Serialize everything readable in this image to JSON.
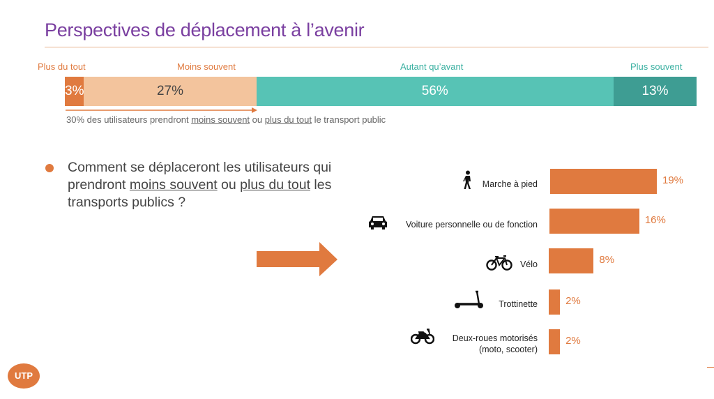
{
  "title": "Perspectives de déplacement à l’avenir",
  "stacked_bar": {
    "segments": [
      {
        "label": "Plus du tout",
        "value": 3,
        "value_text": "3%",
        "color": "#e07a3f",
        "label_color": "#e07a3f",
        "text_color": "#ffffff"
      },
      {
        "label": "Moins souvent",
        "value": 27,
        "value_text": "27%",
        "color": "#f3c49d",
        "label_color": "#e07a3f",
        "text_color": "#444444"
      },
      {
        "label": "Autant qu’avant",
        "value": 56,
        "value_text": "56%",
        "color": "#57c3b5",
        "label_color": "#3ab0a1",
        "text_color": "#ffffff"
      },
      {
        "label": "Plus souvent",
        "value": 13,
        "value_text": "13%",
        "color": "#3e9d93",
        "label_color": "#3ab0a1",
        "text_color": "#ffffff"
      }
    ],
    "note": {
      "part1": "30% des utilisateurs prendront ",
      "part2": "moins souvent",
      "part3": " ou ",
      "part4": "plus du tout",
      "part5": " le transport public"
    }
  },
  "question": {
    "part1": "Comment se déplaceront les utilisateurs qui prendront ",
    "part2": "moins souvent",
    "part3": " ou ",
    "part4": "plus du tout",
    "part5": " les transports publics ?"
  },
  "chart_data": {
    "type": "bar",
    "orientation": "horizontal",
    "categories": [
      "Marche à pied",
      "Voiture personnelle ou de fonction",
      "Vélo",
      "Trottinette",
      "Deux-roues motorisés (moto, scooter)"
    ],
    "values": [
      19,
      16,
      8,
      2,
      2
    ],
    "value_labels": [
      "19%",
      "16%",
      "8%",
      "2%",
      "2%"
    ],
    "category_lines": [
      [
        "Marche à pied"
      ],
      [
        "Voiture personnelle ou de fonction"
      ],
      [
        "Vélo"
      ],
      [
        "Trottinette"
      ],
      [
        "Deux-roues motorisés",
        "(moto, scooter)"
      ]
    ],
    "icons": [
      "walking-person-icon",
      "car-icon",
      "bicycle-icon",
      "scooter-icon",
      "motorcycle-icon"
    ],
    "bar_color": "#e07a3f"
  },
  "logo": {
    "text": "UTP"
  },
  "colors": {
    "accent": "#e07a3f",
    "title": "#7a3fa0",
    "teal": "#57c3b5",
    "dark_teal": "#3e9d93",
    "light_orange": "#f3c49d"
  }
}
